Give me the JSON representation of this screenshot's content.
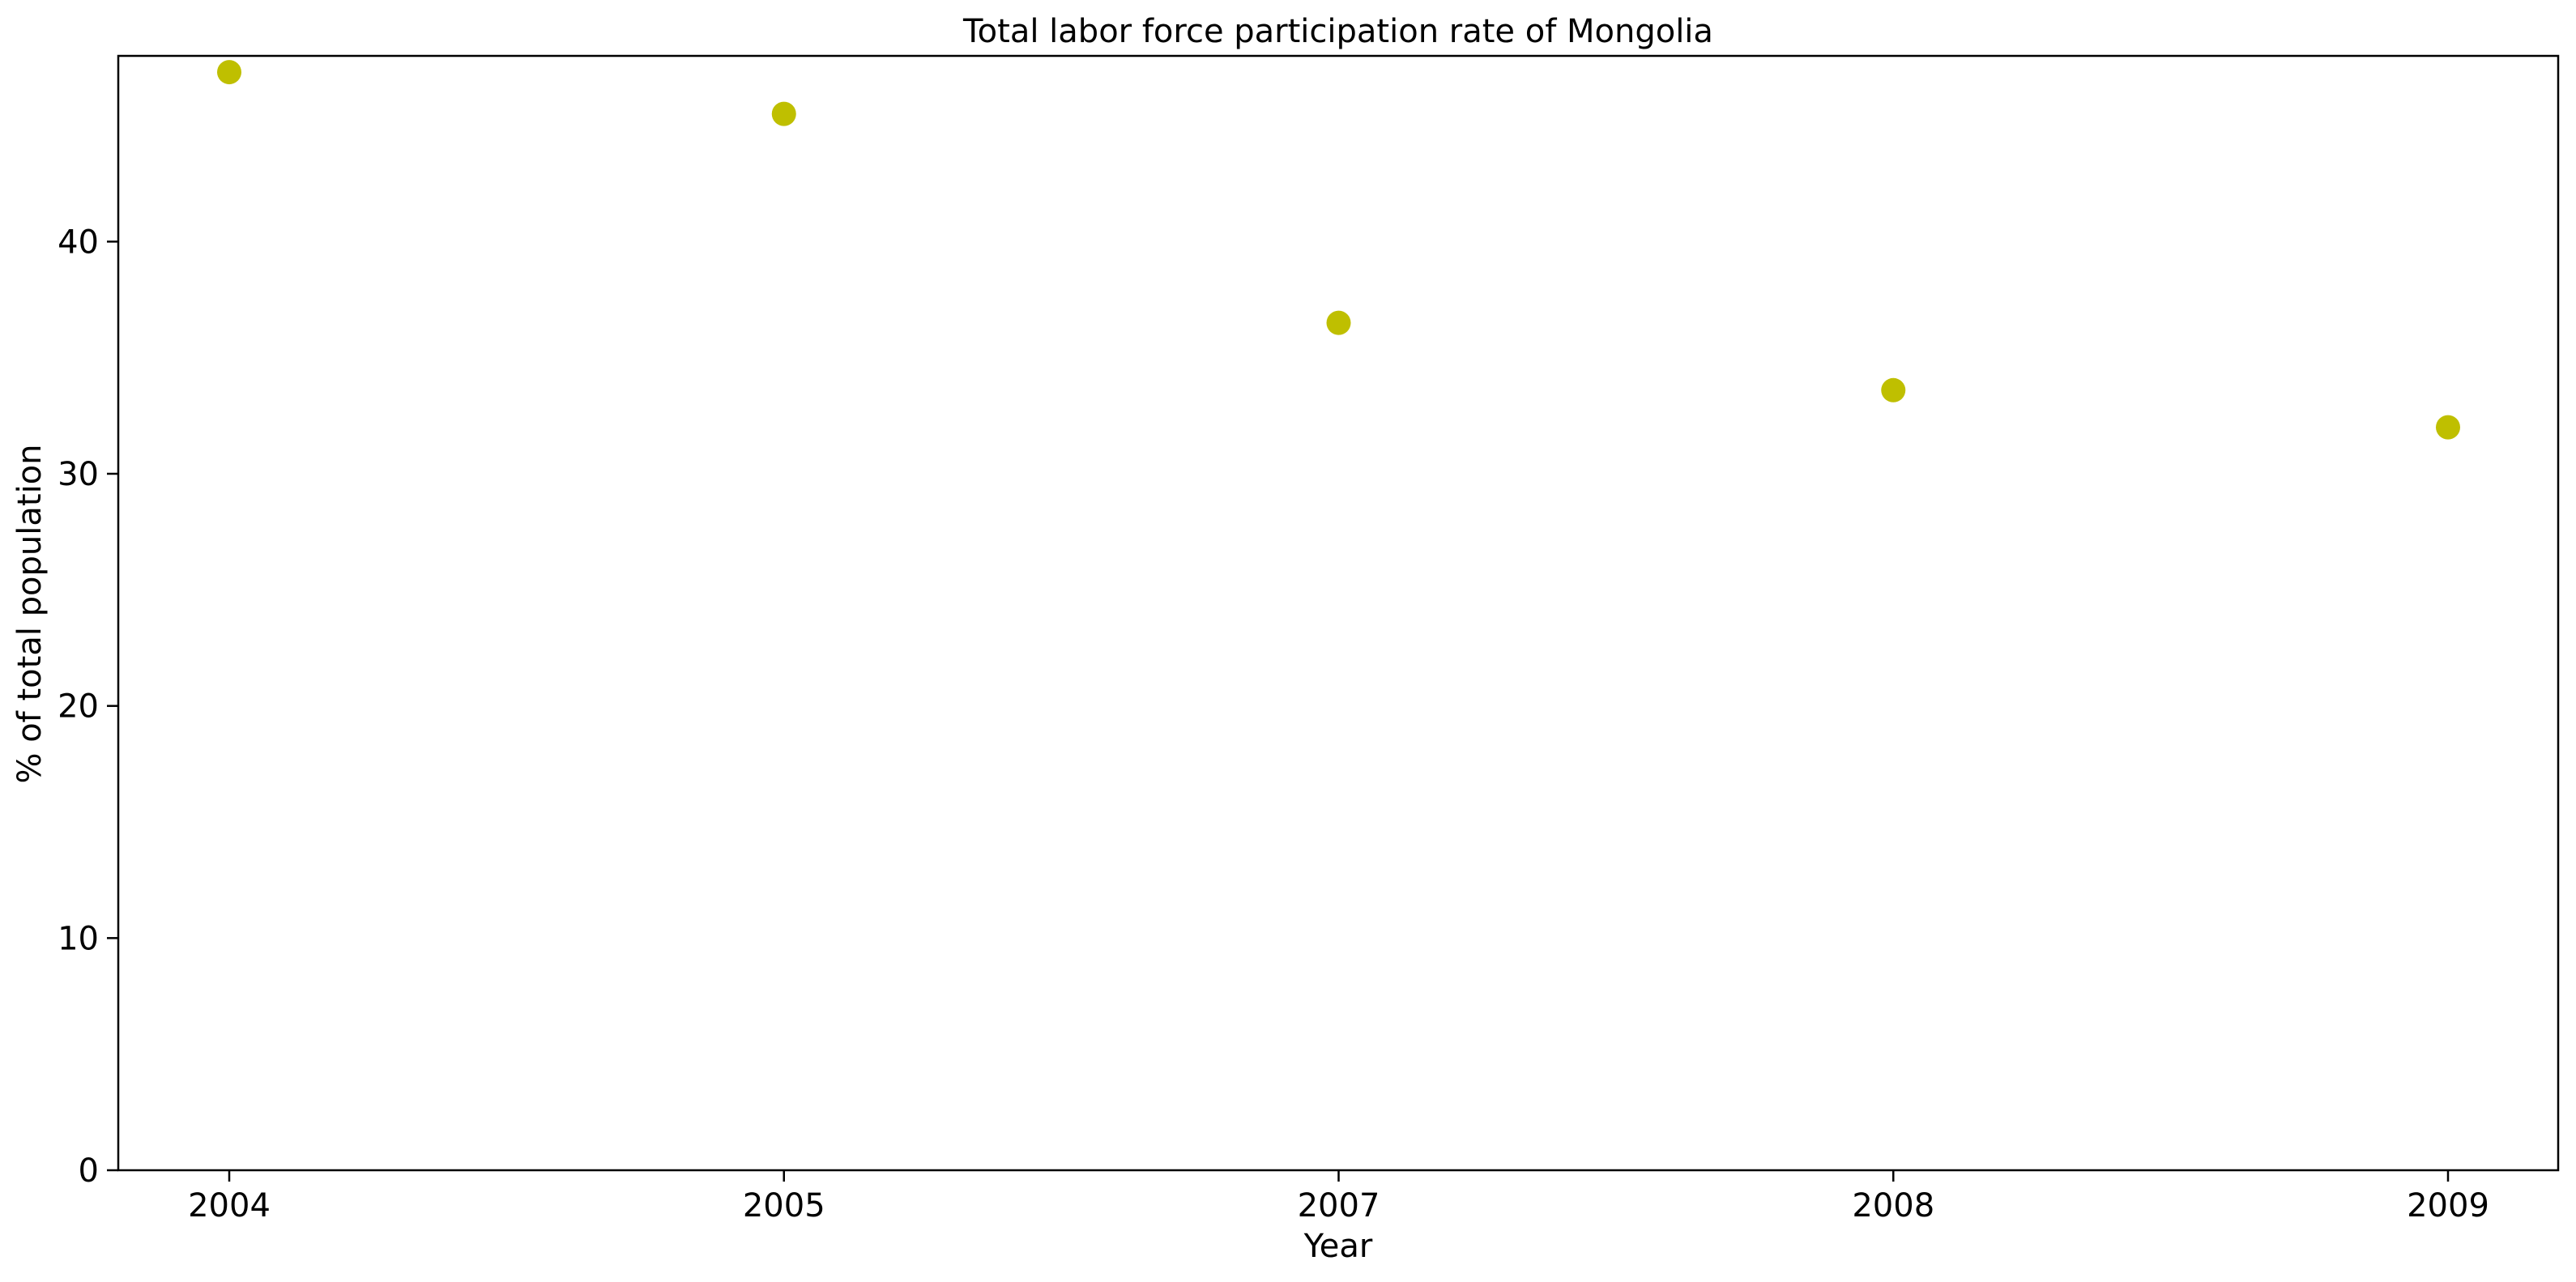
{
  "chart_data": {
    "type": "scatter",
    "title": "Total labor force participation rate of Mongolia",
    "xlabel": "Year",
    "ylabel": "% of total population",
    "categories": [
      "2004",
      "2005",
      "2007",
      "2008",
      "2009"
    ],
    "values": [
      47.3,
      45.5,
      36.5,
      33.6,
      32.0
    ],
    "ylim": [
      0,
      48
    ],
    "yticks": [
      0,
      10,
      20,
      30,
      40
    ],
    "grid": false,
    "marker_color": "#bfbf00"
  }
}
